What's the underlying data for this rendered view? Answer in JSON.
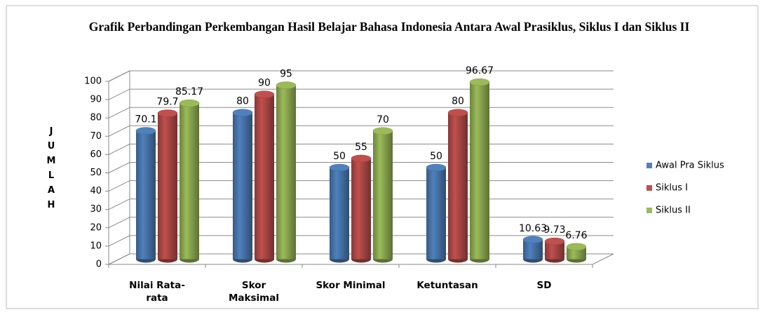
{
  "chart_data": {
    "type": "bar3d",
    "title": "Grafik Perbandingan Perkembangan Hasil Belajar Bahasa Indonesia Antara Awal Prasiklus, Siklus I dan Siklus II",
    "y_label": "JUMLAH",
    "categories": [
      "Nilai Rata-rata",
      "Skor Maksimal",
      "Skor Minimal",
      "Ketuntasan",
      "SD"
    ],
    "series": [
      {
        "name": "Awal Pra Siklus",
        "color": "#4f81bd",
        "values": [
          70.1,
          80,
          50,
          50,
          10.63
        ]
      },
      {
        "name": "Siklus I",
        "color": "#c0504d",
        "values": [
          79.7,
          90,
          55,
          80,
          9.73
        ]
      },
      {
        "name": "Siklus II",
        "color": "#9bbb59",
        "values": [
          85.17,
          95,
          70,
          96.67,
          6.76
        ]
      }
    ],
    "ylim": [
      0,
      100
    ],
    "yticks": [
      0,
      10,
      20,
      30,
      40,
      50,
      60,
      70,
      80,
      90,
      100
    ],
    "grid": true,
    "legend": "right"
  }
}
